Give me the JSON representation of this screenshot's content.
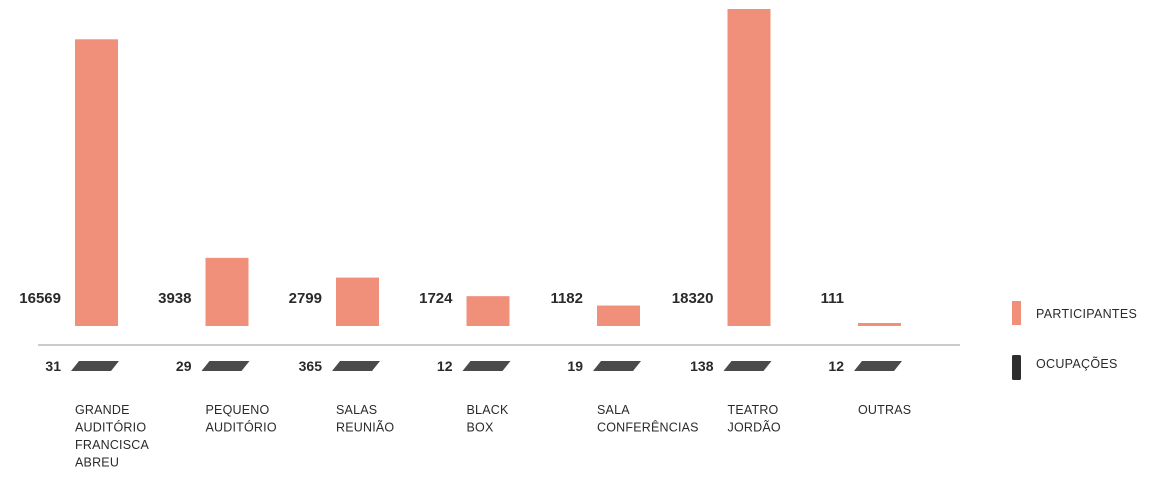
{
  "chart_data": {
    "type": "bar",
    "categories": [
      [
        "GRANDE",
        "AUDITÓRIO",
        "FRANCISCA",
        "ABREU"
      ],
      [
        "PEQUENO",
        "AUDITÓRIO"
      ],
      [
        "SALAS",
        "REUNIÃO"
      ],
      [
        "BLACK",
        "BOX"
      ],
      [
        "SALA",
        "CONFERÊNCIAS"
      ],
      [
        "TEATRO",
        "JORDÃO"
      ],
      [
        "OUTRAS"
      ]
    ],
    "series": [
      {
        "name": "PARTICIPANTES",
        "values": [
          16569,
          3938,
          2799,
          1724,
          1182,
          18320,
          111
        ],
        "labels": [
          "16569",
          "3938",
          "2799",
          "1724",
          "1182",
          "18320",
          "111"
        ],
        "color": "#F0907A"
      },
      {
        "name": "OCUPAÇÕES",
        "values": [
          31,
          29,
          365,
          12,
          19,
          138,
          12
        ],
        "labels": [
          "31",
          "29",
          "365",
          "12",
          "19",
          "138",
          "12"
        ],
        "color": "#4A4A4A"
      }
    ],
    "title": "",
    "xlabel": "",
    "ylabel": "",
    "ylim": [
      0,
      18320
    ],
    "grid": false,
    "legend": "right"
  }
}
